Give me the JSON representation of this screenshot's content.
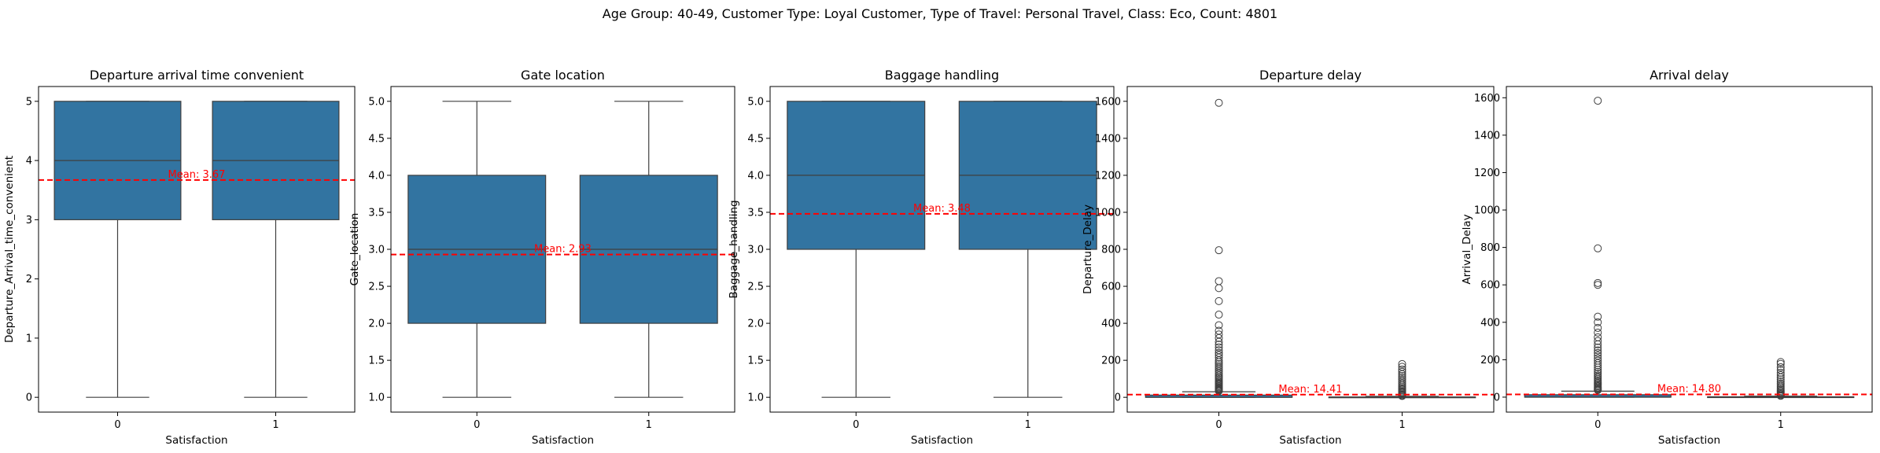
{
  "suptitle": "Age Group: 40-49, Customer Type: Loyal Customer, Type of Travel: Personal Travel, Class: Eco, Count: 4801",
  "colors": {
    "box": "#3274a1",
    "edge": "#3f3f3f",
    "mean_line": "#ff0000",
    "mean_text": "#ff0000"
  },
  "chart_data": [
    {
      "type": "box",
      "title": "Departure arrival time convenient",
      "xlabel": "Satisfaction",
      "ylabel": "Departure_Arrival_time_convenient",
      "categories": [
        "0",
        "1"
      ],
      "ylim": [
        -0.25,
        5.25
      ],
      "yticks": [
        0,
        1,
        2,
        3,
        4,
        5
      ],
      "ytick_labels": [
        "0",
        "1",
        "2",
        "3",
        "4",
        "5"
      ],
      "boxes": [
        {
          "category": "0",
          "whislo": 0,
          "q1": 3,
          "med": 4,
          "q3": 5,
          "whishi": 5,
          "fliers": []
        },
        {
          "category": "1",
          "whislo": 0,
          "q1": 3,
          "med": 4,
          "q3": 5,
          "whishi": 5,
          "fliers": []
        }
      ],
      "mean": 3.67,
      "mean_label": "Mean: 3.67"
    },
    {
      "type": "box",
      "title": "Gate location",
      "xlabel": "Satisfaction",
      "ylabel": "Gate_location",
      "categories": [
        "0",
        "1"
      ],
      "ylim": [
        0.8,
        5.2
      ],
      "yticks": [
        1.0,
        1.5,
        2.0,
        2.5,
        3.0,
        3.5,
        4.0,
        4.5,
        5.0
      ],
      "ytick_labels": [
        "1.0",
        "1.5",
        "2.0",
        "2.5",
        "3.0",
        "3.5",
        "4.0",
        "4.5",
        "5.0"
      ],
      "boxes": [
        {
          "category": "0",
          "whislo": 1,
          "q1": 2,
          "med": 3,
          "q3": 4,
          "whishi": 5,
          "fliers": []
        },
        {
          "category": "1",
          "whislo": 1,
          "q1": 2,
          "med": 3,
          "q3": 4,
          "whishi": 5,
          "fliers": []
        }
      ],
      "mean": 2.93,
      "mean_label": "Mean: 2.93"
    },
    {
      "type": "box",
      "title": "Baggage handling",
      "xlabel": "Satisfaction",
      "ylabel": "Baggage_handling",
      "categories": [
        "0",
        "1"
      ],
      "ylim": [
        0.8,
        5.2
      ],
      "yticks": [
        1.0,
        1.5,
        2.0,
        2.5,
        3.0,
        3.5,
        4.0,
        4.5,
        5.0
      ],
      "ytick_labels": [
        "1.0",
        "1.5",
        "2.0",
        "2.5",
        "3.0",
        "3.5",
        "4.0",
        "4.5",
        "5.0"
      ],
      "boxes": [
        {
          "category": "0",
          "whislo": 1,
          "q1": 3,
          "med": 4,
          "q3": 5,
          "whishi": 5,
          "fliers": []
        },
        {
          "category": "1",
          "whislo": 1,
          "q1": 3,
          "med": 4,
          "q3": 5,
          "whishi": 5,
          "fliers": []
        }
      ],
      "mean": 3.48,
      "mean_label": "Mean: 3.48"
    },
    {
      "type": "box",
      "title": "Departure delay",
      "xlabel": "Satisfaction",
      "ylabel": "Departure_Delay",
      "categories": [
        "0",
        "1"
      ],
      "ylim": [
        -80,
        1680
      ],
      "yticks": [
        0,
        200,
        400,
        600,
        800,
        1000,
        1200,
        1400,
        1600
      ],
      "ytick_labels": [
        "0",
        "200",
        "400",
        "600",
        "800",
        "1000",
        "1200",
        "1400",
        "1600"
      ],
      "boxes": [
        {
          "category": "0",
          "whislo": 0,
          "q1": 0,
          "med": 0,
          "q3": 12,
          "whishi": 30,
          "fliers": [
            1592,
            795,
            628,
            590,
            520,
            447,
            390,
            360,
            340,
            320,
            300,
            285,
            270,
            255,
            240,
            228,
            215,
            200,
            190,
            180,
            170,
            160,
            150,
            140,
            130,
            120,
            112,
            105,
            98,
            90,
            84,
            78,
            72,
            66,
            60,
            55,
            50,
            46,
            42,
            38,
            34
          ]
        },
        {
          "category": "1",
          "whislo": 0,
          "q1": 0,
          "med": 0,
          "q3": 2,
          "whishi": 5,
          "fliers": [
            180,
            165,
            150,
            138,
            125,
            115,
            105,
            95,
            85,
            75,
            66,
            58,
            50,
            44,
            38,
            32,
            26,
            20,
            15,
            10,
            7
          ]
        }
      ],
      "mean": 14.41,
      "mean_label": "Mean: 14.41"
    },
    {
      "type": "box",
      "title": "Arrival delay",
      "xlabel": "Satisfaction",
      "ylabel": "Arrival_Delay",
      "categories": [
        "0",
        "1"
      ],
      "ylim": [
        -80,
        1660
      ],
      "yticks": [
        0,
        200,
        400,
        600,
        800,
        1000,
        1200,
        1400,
        1600
      ],
      "ytick_labels": [
        "0",
        "200",
        "400",
        "600",
        "800",
        "1000",
        "1200",
        "1400",
        "1600"
      ],
      "boxes": [
        {
          "category": "0",
          "whislo": 0,
          "q1": 0,
          "med": 0,
          "q3": 13,
          "whishi": 32,
          "fliers": [
            1584,
            795,
            610,
            600,
            430,
            400,
            370,
            345,
            320,
            300,
            282,
            265,
            250,
            236,
            222,
            208,
            195,
            182,
            170,
            158,
            146,
            135,
            125,
            115,
            106,
            98,
            90,
            83,
            76,
            70,
            64,
            58,
            52,
            47,
            42,
            38
          ]
        },
        {
          "category": "1",
          "whislo": 0,
          "q1": 0,
          "med": 0,
          "q3": 2,
          "whishi": 5,
          "fliers": [
            188,
            178,
            160,
            145,
            130,
            118,
            106,
            95,
            84,
            74,
            65,
            56,
            48,
            41,
            34,
            28,
            22,
            16,
            11,
            7
          ]
        }
      ],
      "mean": 14.8,
      "mean_label": "Mean: 14.80"
    }
  ]
}
